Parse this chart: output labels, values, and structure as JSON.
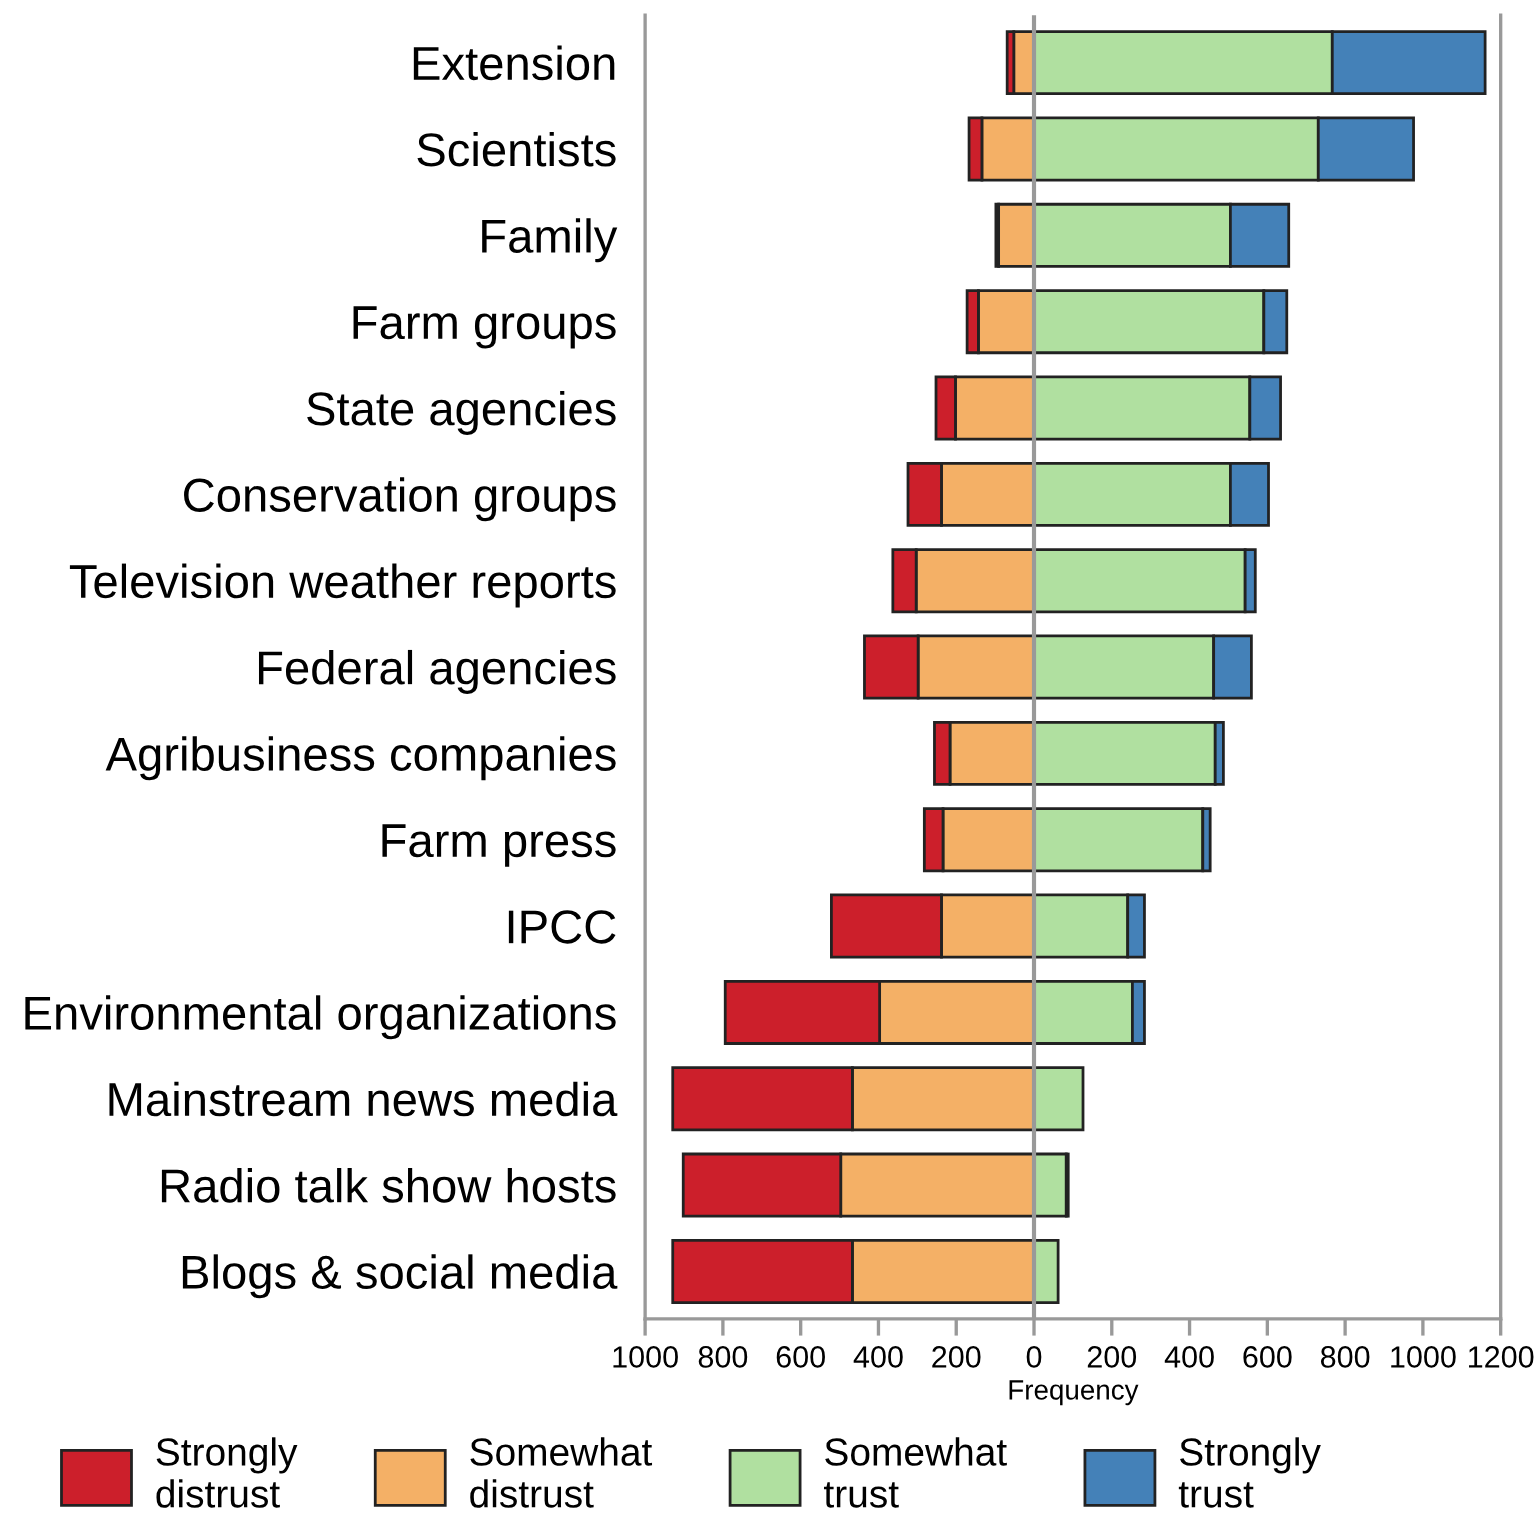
{
  "chart_data": {
    "type": "bar",
    "orientation": "horizontal",
    "stacked": true,
    "xlabel": "Frequency",
    "categories": [
      "Extension",
      "Scientists",
      "Family",
      "Farm groups",
      "State agencies",
      "Conservation groups",
      "Television weather reports",
      "Federal agencies",
      "Agribusiness companies",
      "Farm press",
      "IPCC",
      "Environmental organizations",
      "Mainstream news media",
      "Radio talk show hosts",
      "Blogs & social media"
    ],
    "series": [
      {
        "name": "Somewhat\ndistrust",
        "color": "#f4b066",
        "values": [
          -52,
          -134,
          -91,
          -143,
          -202,
          -238,
          -303,
          -298,
          -216,
          -234,
          -238,
          -397,
          -467,
          -497,
          -467
        ]
      },
      {
        "name": "Strongly\ndistrust",
        "color": "#cc1f2b",
        "values": [
          -17,
          -33,
          -7,
          -29,
          -50,
          -86,
          -60,
          -138,
          -40,
          -48,
          -283,
          -397,
          -462,
          -405,
          -462
        ]
      },
      {
        "name": "Somewhat\ntrust",
        "color": "#b0e0a0",
        "values": [
          767,
          731,
          505,
          591,
          555,
          505,
          543,
          462,
          466,
          434,
          241,
          253,
          126,
          83,
          62
        ]
      },
      {
        "name": "Strongly\ntrust",
        "color": "#4481b8",
        "values": [
          393,
          245,
          150,
          59,
          79,
          98,
          26,
          97,
          21,
          19,
          43,
          31,
          null,
          5,
          null
        ]
      }
    ],
    "xlim": [
      -1000,
      1200
    ],
    "xticks": [
      {
        "value": -1000,
        "label": "1000"
      },
      {
        "value": -800,
        "label": "800"
      },
      {
        "value": -600,
        "label": "600"
      },
      {
        "value": -400,
        "label": "400"
      },
      {
        "value": -200,
        "label": "200"
      },
      0,
      200,
      400,
      600,
      800,
      1000,
      1200
    ],
    "ref_lines": [
      {
        "axis": "x",
        "value": 0,
        "color": "#999999"
      }
    ],
    "grid": false,
    "legend": "bottom"
  }
}
